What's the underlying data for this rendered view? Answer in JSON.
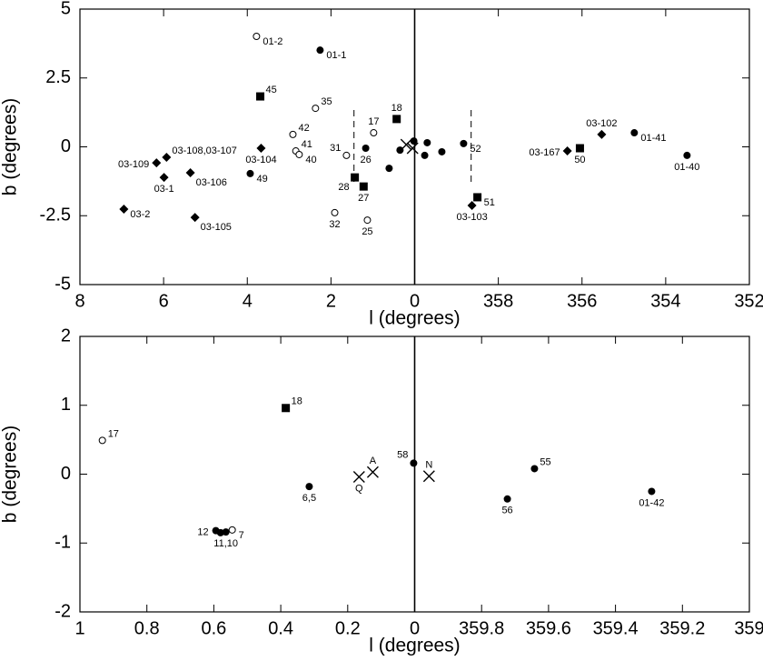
{
  "chart_data": [
    {
      "type": "scatter",
      "x_label": "l (degrees)",
      "y_label": "b (degrees)",
      "xlim": [
        8,
        -8
      ],
      "ylim": [
        -5,
        5
      ],
      "xticks": [
        8,
        6,
        4,
        2,
        0,
        {
          "value": -2,
          "label": "358"
        },
        {
          "value": -4,
          "label": "356"
        },
        {
          "value": -6,
          "label": "354"
        },
        {
          "value": -8,
          "label": "352"
        }
      ],
      "yticks": [
        5,
        2.5,
        0,
        -2.5,
        -5
      ],
      "zero_line": true,
      "dashed_lines": [
        {
          "x": 1.45,
          "y": [
            -1.27,
            1.47
          ]
        },
        {
          "x": -1.35,
          "y": [
            -1.27,
            1.47
          ]
        }
      ],
      "series": [
        {
          "marker": "open-circle",
          "x": [
            3.78,
            2.37,
            2.91,
            0.98,
            2.84,
            2.76,
            1.63,
            1.91,
            1.13
          ],
          "values": [
            4.01,
            1.4,
            0.45,
            0.51,
            -0.15,
            -0.28,
            -0.31,
            -2.39,
            -2.66
          ],
          "labels": [
            "01-2",
            "35",
            "42",
            "17",
            "41",
            "40",
            "31",
            "32",
            "25"
          ]
        },
        {
          "marker": "filled-circle",
          "x": [
            2.26,
            3.93,
            1.17,
            0.61,
            0.35,
            0.02,
            -0.3,
            -0.24,
            -0.65,
            -1.17,
            -5.25,
            -6.51
          ],
          "values": [
            3.51,
            -0.97,
            -0.05,
            -0.78,
            -0.12,
            0.21,
            0.15,
            -0.31,
            -0.18,
            0.12,
            0.51,
            -0.31
          ],
          "labels": [
            "01-1",
            "49",
            "26",
            null,
            null,
            null,
            null,
            null,
            null,
            "52",
            "01-41",
            "01-40"
          ]
        },
        {
          "marker": "square",
          "x": [
            3.69,
            0.43,
            1.43,
            1.22,
            -1.5,
            -3.95
          ],
          "values": [
            1.83,
            1.01,
            -1.11,
            -1.44,
            -1.83,
            -0.05
          ],
          "labels": [
            "45",
            "18",
            "28",
            "27",
            "51",
            "50"
          ]
        },
        {
          "marker": "diamond",
          "x": [
            6.17,
            5.93,
            5.99,
            5.36,
            3.67,
            6.95,
            5.25,
            -1.37,
            -3.65,
            -4.47
          ],
          "values": [
            -0.58,
            -0.38,
            -1.11,
            -0.94,
            -0.05,
            -2.26,
            -2.56,
            -2.13,
            -0.15,
            0.45
          ],
          "labels": [
            "03-109",
            "03-108,03-107",
            "03-1",
            "03-106",
            "03-104",
            "03-2",
            "03-105",
            "03-103",
            "03-167",
            "03-102"
          ]
        },
        {
          "marker": "cross",
          "x": [
            0.2,
            0.05
          ],
          "values": [
            0.08,
            -0.05
          ],
          "labels": [
            null,
            null
          ]
        }
      ]
    },
    {
      "type": "scatter",
      "x_label": "l (degrees)",
      "y_label": "b (degrees)",
      "xlim": [
        1,
        -1
      ],
      "ylim": [
        -2,
        2
      ],
      "xticks": [
        1,
        0.8,
        0.6,
        0.4,
        0.2,
        0,
        {
          "value": -0.2,
          "label": "359.8"
        },
        {
          "value": -0.4,
          "label": "359.6"
        },
        {
          "value": -0.6,
          "label": "359.4"
        },
        {
          "value": -0.8,
          "label": "359.2"
        },
        {
          "value": -1,
          "label": "359"
        }
      ],
      "yticks": [
        2,
        1,
        0,
        -1,
        -2
      ],
      "zero_line": true,
      "series": [
        {
          "marker": "open-circle",
          "x": [
            0.933,
            0.545
          ],
          "values": [
            0.49,
            -0.81
          ],
          "labels": [
            "17",
            "7"
          ]
        },
        {
          "marker": "filled-circle",
          "x": [
            0.315,
            0.003,
            -0.358,
            -0.277,
            -0.708,
            0.594,
            0.58,
            0.564
          ],
          "values": [
            -0.18,
            0.16,
            0.08,
            -0.36,
            -0.25,
            -0.82,
            -0.85,
            -0.84
          ],
          "labels": [
            "6,5",
            "58",
            "55",
            "56",
            "01-42",
            "12",
            null,
            "11,10"
          ]
        },
        {
          "marker": "square",
          "x": [
            0.385
          ],
          "values": [
            0.96
          ],
          "labels": [
            "18"
          ]
        },
        {
          "marker": "cross",
          "x": [
            0.166,
            0.125,
            -0.043
          ],
          "values": [
            -0.04,
            0.03,
            -0.03
          ],
          "labels": [
            "Q",
            "A",
            "N"
          ]
        }
      ]
    }
  ]
}
